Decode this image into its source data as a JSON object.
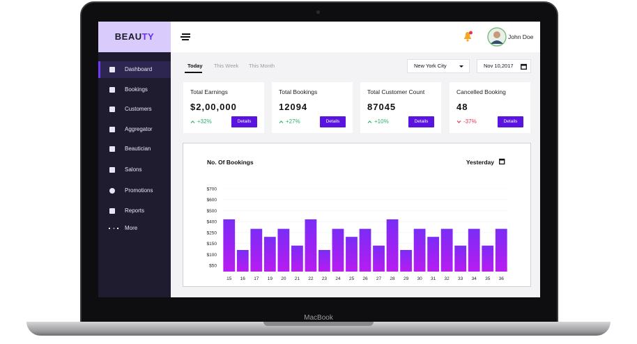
{
  "device": "MacBook",
  "brand": {
    "part1": "BEAU",
    "part2": "TY"
  },
  "menu": [
    "Dashboard",
    "Bookings",
    "Customers",
    "Aggregator",
    "Beautician",
    "Salons",
    "Promotions",
    "Reports",
    "More"
  ],
  "header": {
    "user": "John Doe"
  },
  "tabs": [
    "Today",
    "This Week",
    "This Month"
  ],
  "filters": {
    "city": "New York City",
    "date": "Nov 10,2017"
  },
  "cards": [
    {
      "title": "Total Earnings",
      "value": "$2,00,000",
      "change": "+32%",
      "button": "Details"
    },
    {
      "title": "Total Bookings",
      "value": "12094",
      "change": "+27%",
      "button": "Details"
    },
    {
      "title": "Total Customer Count",
      "value": "87045",
      "change": "+10%",
      "button": "Details"
    },
    {
      "title": "Cancelled Booking",
      "value": "48",
      "change": "-37%",
      "button": "Details"
    }
  ],
  "chart_data": {
    "type": "bar",
    "title": "No. Of Bookings",
    "filter": "Yesterday",
    "categories": [
      "15",
      "16",
      "17",
      "19",
      "20",
      "21",
      "22",
      "23",
      "24",
      "25",
      "26",
      "27",
      "28",
      "29",
      "30",
      "31",
      "32",
      "33",
      "34",
      "35",
      "36"
    ],
    "values": [
      420,
      120,
      300,
      210,
      300,
      140,
      420,
      120,
      300,
      210,
      300,
      140,
      420,
      120,
      300,
      210,
      300,
      140,
      300,
      140,
      300
    ],
    "color": [
      "#7a2cf6",
      "#b81cf0"
    ],
    "ylim": [
      0,
      750
    ],
    "yticks": [
      {
        "value": 50,
        "label": "$50"
      },
      {
        "value": 100,
        "label": "$100"
      },
      {
        "value": 150,
        "label": "$150"
      },
      {
        "value": 250,
        "label": "$250"
      },
      {
        "value": 400,
        "label": "$400"
      },
      {
        "value": 500,
        "label": "$500"
      },
      {
        "value": 600,
        "label": "$600"
      },
      {
        "value": 700,
        "label": "$700"
      }
    ],
    "grid": true
  }
}
